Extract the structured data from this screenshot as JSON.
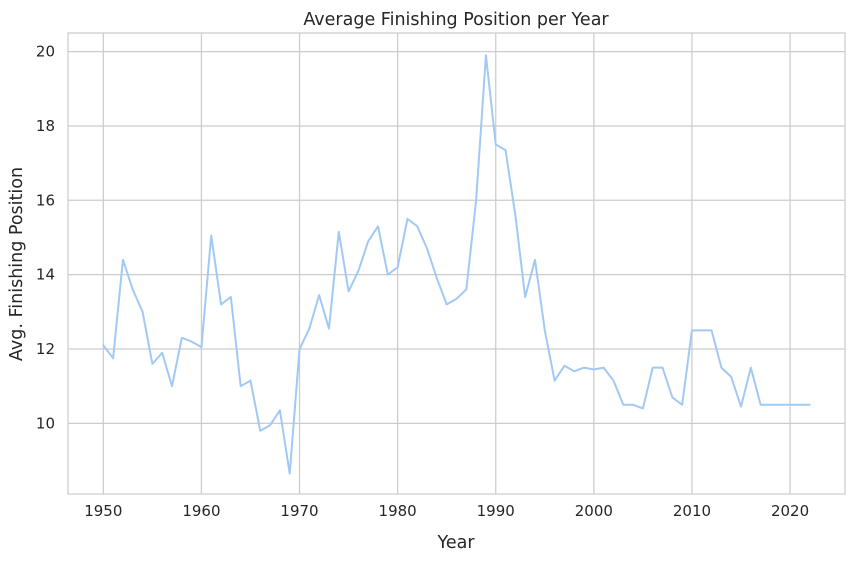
{
  "chart_data": {
    "type": "line",
    "title": "Average Finishing Position per Year",
    "xlabel": "Year",
    "ylabel": "Avg. Finishing Position",
    "xlim": [
      1946.4,
      2025.6
    ],
    "ylim": [
      8.1,
      20.5
    ],
    "xticks": [
      1950,
      1960,
      1970,
      1980,
      1990,
      2000,
      2010,
      2020
    ],
    "yticks": [
      10,
      12,
      14,
      16,
      18,
      20
    ],
    "grid": true,
    "line_color": "#a1c9f4",
    "series": [
      {
        "x": [
          1950,
          1951,
          1952,
          1953,
          1954,
          1955,
          1956,
          1957,
          1958,
          1959,
          1960,
          1961,
          1962,
          1963,
          1964,
          1965,
          1966,
          1967,
          1968,
          1969,
          1970,
          1971,
          1972,
          1973,
          1974,
          1975,
          1976,
          1977,
          1978,
          1979,
          1980,
          1981,
          1982,
          1983,
          1984,
          1985,
          1986,
          1987,
          1988,
          1989,
          1990,
          1991,
          1992,
          1993,
          1994,
          1995,
          1996,
          1997,
          1998,
          1999,
          2000,
          2001,
          2002,
          2003,
          2004,
          2005,
          2006,
          2007,
          2008,
          2009,
          2010,
          2011,
          2012,
          2013,
          2014,
          2015,
          2016,
          2017,
          2018,
          2019,
          2020,
          2021,
          2022
        ],
        "values": [
          12.1,
          11.75,
          14.4,
          13.6,
          13.0,
          11.6,
          11.9,
          11.0,
          12.3,
          12.2,
          12.05,
          15.05,
          13.2,
          13.4,
          11.0,
          11.15,
          9.8,
          9.95,
          10.35,
          8.65,
          12.0,
          12.55,
          13.45,
          12.55,
          15.15,
          13.55,
          14.1,
          14.9,
          15.3,
          14.0,
          14.2,
          15.5,
          15.3,
          14.7,
          13.9,
          13.2,
          13.35,
          13.6,
          16.0,
          19.9,
          17.5,
          17.35,
          15.6,
          13.4,
          14.4,
          12.5,
          11.15,
          11.55,
          11.4,
          11.5,
          11.45,
          11.5,
          11.15,
          10.5,
          10.5,
          10.4,
          11.5,
          11.5,
          10.7,
          10.5,
          12.5,
          12.5,
          12.5,
          11.5,
          11.25,
          10.45,
          11.5,
          10.5,
          10.5,
          10.5,
          10.5,
          10.5,
          10.5
        ]
      }
    ]
  }
}
